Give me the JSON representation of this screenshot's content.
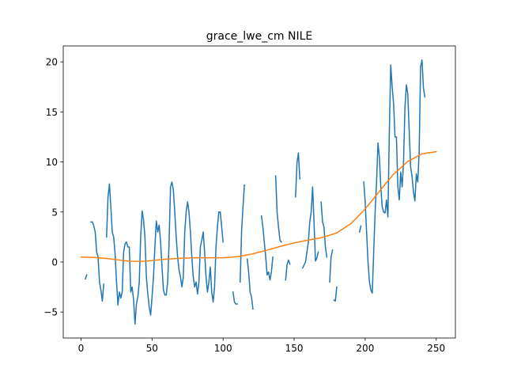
{
  "chart_data": {
    "type": "line",
    "title": "grace_lwe_cm NILE",
    "xlabel": "",
    "ylabel": "",
    "xlim": [
      -12.5,
      263.5
    ],
    "ylim": [
      -7.6,
      21.6
    ],
    "xticks": [
      0,
      50,
      100,
      150,
      200,
      250
    ],
    "yticks": [
      -5,
      0,
      5,
      10,
      15,
      20
    ],
    "grid": false,
    "series": [
      {
        "color": "#1f77b4",
        "segments": [
          [
            [
              3,
              -1.7
            ],
            [
              4,
              -1.3
            ]
          ],
          [
            [
              7,
              4.0
            ],
            [
              8,
              4.0
            ],
            [
              9,
              3.6
            ],
            [
              10,
              3.0
            ],
            [
              11,
              1.0
            ],
            [
              12,
              0.5
            ],
            [
              13,
              -2.0
            ],
            [
              14,
              -2.8
            ],
            [
              15,
              -3.9
            ],
            [
              16,
              -2.2
            ]
          ],
          [
            [
              18,
              2.5
            ],
            [
              19,
              6.5
            ],
            [
              20,
              7.8
            ],
            [
              21,
              5.5
            ],
            [
              22,
              3.0
            ],
            [
              23,
              2.5
            ],
            [
              24,
              0.8
            ],
            [
              25,
              -2.0
            ],
            [
              26,
              -4.3
            ],
            [
              27,
              -3.0
            ],
            [
              28,
              -3.6
            ],
            [
              29,
              -3.0
            ],
            [
              30,
              1.0
            ],
            [
              31,
              1.8
            ],
            [
              32,
              2.0
            ],
            [
              33,
              1.5
            ],
            [
              34,
              1.5
            ],
            [
              35,
              -3.0
            ],
            [
              36,
              -2.5
            ],
            [
              37,
              -3.8
            ],
            [
              38,
              -6.2
            ],
            [
              39,
              -4.2
            ],
            [
              40,
              -3.5
            ],
            [
              41,
              -2.0
            ],
            [
              42,
              2.5
            ],
            [
              43,
              5.1
            ],
            [
              44,
              4.2
            ],
            [
              45,
              2.5
            ],
            [
              46,
              -1.5
            ],
            [
              47,
              -3.2
            ],
            [
              48,
              -4.5
            ],
            [
              49,
              -5.3
            ],
            [
              50,
              -3.5
            ],
            [
              51,
              -1.5
            ],
            [
              52,
              1.5
            ],
            [
              53,
              4.1
            ],
            [
              54,
              3.0
            ],
            [
              55,
              3.7
            ],
            [
              56,
              2.0
            ],
            [
              57,
              -0.5
            ],
            [
              58,
              -2.8
            ],
            [
              59,
              -3.3
            ],
            [
              60,
              -3.3
            ],
            [
              61,
              -2.0
            ],
            [
              62,
              2.0
            ],
            [
              63,
              7.5
            ],
            [
              64,
              8.0
            ],
            [
              65,
              7.2
            ],
            [
              66,
              5.0
            ],
            [
              67,
              2.5
            ],
            [
              68,
              0.5
            ],
            [
              69,
              -0.8
            ],
            [
              70,
              -1.5
            ],
            [
              71,
              -2.5
            ],
            [
              72,
              -1.5
            ],
            [
              73,
              3.0
            ],
            [
              74,
              5.0
            ],
            [
              75,
              6.0
            ],
            [
              76,
              5.0
            ],
            [
              77,
              3.0
            ],
            [
              78,
              0.5
            ],
            [
              79,
              -1.5
            ],
            [
              80,
              -2.5
            ],
            [
              81,
              -2.0
            ],
            [
              82,
              -3.2
            ],
            [
              83,
              -2.0
            ],
            [
              84,
              1.5
            ],
            [
              85,
              2.2
            ],
            [
              86,
              3.0
            ],
            [
              87,
              1.0
            ],
            [
              88,
              -1.5
            ],
            [
              89,
              -3.0
            ],
            [
              90,
              -2.0
            ],
            [
              91,
              -0.5
            ],
            [
              92,
              -3.0
            ],
            [
              93,
              -4.0
            ],
            [
              94,
              -2.5
            ],
            [
              95,
              1.5
            ],
            [
              96,
              3.5
            ],
            [
              97,
              5.0
            ],
            [
              98,
              5.0
            ],
            [
              99,
              3.5
            ],
            [
              100,
              2.0
            ]
          ],
          [
            [
              107,
              -3.0
            ],
            [
              108,
              -4.0
            ],
            [
              109,
              -4.2
            ],
            [
              110,
              -4.2
            ]
          ],
          [
            [
              112,
              -2.0
            ],
            [
              113,
              3.0
            ],
            [
              114,
              5.5
            ],
            [
              115,
              7.7
            ]
          ],
          [
            [
              117,
              0.3
            ],
            [
              118,
              -1.0
            ],
            [
              119,
              -3.0
            ],
            [
              120,
              -3.5
            ],
            [
              121,
              -4.7
            ]
          ],
          [
            [
              127,
              4.6
            ],
            [
              128,
              3.5
            ],
            [
              129,
              2.0
            ],
            [
              130,
              0.5
            ],
            [
              131,
              -1.3
            ],
            [
              132,
              -1.0
            ],
            [
              133,
              -1.8
            ],
            [
              134,
              -1.0
            ],
            [
              135,
              0.5
            ]
          ],
          [
            [
              137,
              8.6
            ],
            [
              138,
              5.0
            ],
            [
              139,
              3.5
            ],
            [
              140,
              2.2
            ],
            [
              141,
              2.0
            ]
          ],
          [
            [
              144,
              -1.8
            ],
            [
              145,
              -0.3
            ],
            [
              146,
              0.2
            ],
            [
              147,
              -0.2
            ]
          ],
          [
            [
              151,
              6.5
            ],
            [
              152,
              9.9
            ],
            [
              153,
              10.9
            ],
            [
              154,
              8.3
            ]
          ],
          [
            [
              156,
              -0.6
            ],
            [
              157,
              -0.3
            ],
            [
              158,
              0.0
            ],
            [
              159,
              1.0
            ],
            [
              160,
              2.0
            ],
            [
              161,
              4.0
            ],
            [
              162,
              5.0
            ],
            [
              163,
              7.5
            ],
            [
              164,
              4.0
            ],
            [
              165,
              0.1
            ],
            [
              166,
              0.4
            ],
            [
              167,
              1.0
            ]
          ],
          [
            [
              169,
              6.0
            ],
            [
              170,
              4.0
            ],
            [
              171,
              3.5
            ],
            [
              172,
              1.5
            ],
            [
              173,
              0.5
            ]
          ],
          [
            [
              175,
              -2.0
            ],
            [
              176,
              0.5
            ],
            [
              177,
              1.2
            ]
          ],
          [
            [
              178,
              -3.8
            ],
            [
              179,
              -3.9
            ],
            [
              180,
              -2.5
            ]
          ],
          [
            [
              196,
              3.0
            ],
            [
              197,
              3.6
            ]
          ],
          [
            [
              199,
              8.0
            ],
            [
              200,
              6.0
            ],
            [
              201,
              3.0
            ],
            [
              202,
              0.0
            ],
            [
              203,
              -2.0
            ],
            [
              204,
              -2.8
            ],
            [
              205,
              -3.1
            ],
            [
              206,
              1.0
            ],
            [
              207,
              5.0
            ],
            [
              208,
              8.0
            ],
            [
              209,
              11.9
            ],
            [
              210,
              10.5
            ],
            [
              211,
              7.5
            ],
            [
              212,
              5.5
            ],
            [
              213,
              5.0
            ],
            [
              214,
              4.9
            ],
            [
              215,
              6.2
            ],
            [
              216,
              4.5
            ],
            [
              217,
              13.0
            ],
            [
              218,
              19.7
            ],
            [
              219,
              17.5
            ],
            [
              220,
              15.8
            ],
            [
              221,
              12.5
            ],
            [
              222,
              12.5
            ],
            [
              223,
              7.5
            ],
            [
              224,
              6.2
            ],
            [
              225,
              9.0
            ],
            [
              226,
              7.5
            ],
            [
              227,
              10.0
            ],
            [
              228,
              15.5
            ],
            [
              229,
              17.7
            ],
            [
              230,
              16.8
            ],
            [
              231,
              13.0
            ],
            [
              232,
              9.5
            ],
            [
              233,
              8.5
            ],
            [
              234,
              7.0
            ],
            [
              235,
              6.1
            ],
            [
              236,
              8.8
            ],
            [
              237,
              8.0
            ],
            [
              238,
              11.0
            ],
            [
              239,
              19.5
            ],
            [
              240,
              20.2
            ],
            [
              241,
              17.4
            ],
            [
              242,
              16.5
            ]
          ]
        ]
      },
      {
        "color": "#ff7f0e",
        "points": [
          [
            0,
            0.5
          ],
          [
            10,
            0.45
          ],
          [
            20,
            0.32
          ],
          [
            30,
            0.14
          ],
          [
            35,
            0.08
          ],
          [
            40,
            0.07
          ],
          [
            45,
            0.08
          ],
          [
            50,
            0.15
          ],
          [
            60,
            0.28
          ],
          [
            70,
            0.37
          ],
          [
            80,
            0.42
          ],
          [
            90,
            0.42
          ],
          [
            100,
            0.42
          ],
          [
            110,
            0.53
          ],
          [
            120,
            0.79
          ],
          [
            130,
            1.15
          ],
          [
            140,
            1.55
          ],
          [
            150,
            1.91
          ],
          [
            160,
            2.19
          ],
          [
            170,
            2.46
          ],
          [
            180,
            2.91
          ],
          [
            190,
            3.84
          ],
          [
            200,
            5.3
          ],
          [
            210,
            7.06
          ],
          [
            220,
            8.79
          ],
          [
            230,
            10.05
          ],
          [
            240,
            10.82
          ],
          [
            250,
            11.03
          ]
        ]
      }
    ]
  }
}
